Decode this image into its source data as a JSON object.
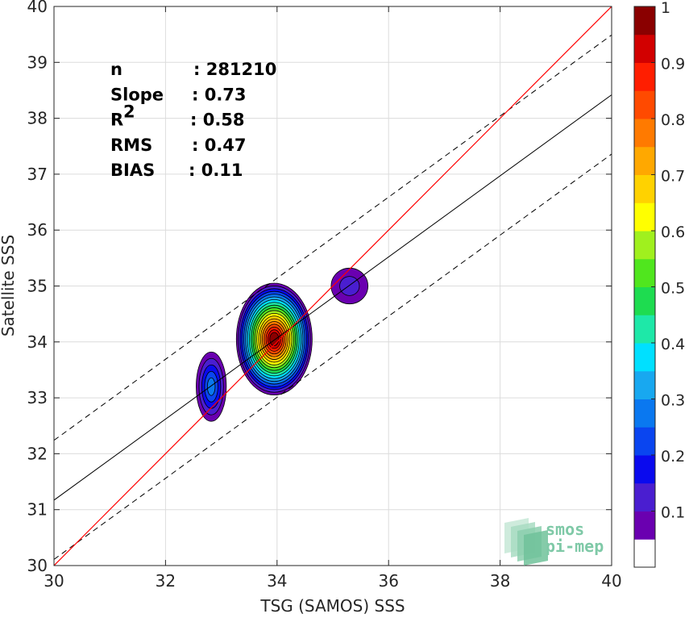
{
  "chart_data": {
    "type": "scatter",
    "subtype": "density-contour",
    "xlabel": "TSG (SAMOS) SSS",
    "ylabel": "Satellite SSS",
    "xlim": [
      30,
      40
    ],
    "ylim": [
      30,
      40
    ],
    "x_ticks": [
      "30",
      "32",
      "34",
      "36",
      "38",
      "40"
    ],
    "y_ticks": [
      "30",
      "31",
      "32",
      "33",
      "34",
      "35",
      "36",
      "37",
      "38",
      "39",
      "40"
    ],
    "grid": true,
    "stats": [
      {
        "label": "n",
        "value": ": 281210"
      },
      {
        "label": "Slope",
        "value": ": 0.73"
      },
      {
        "label": "R",
        "sup": "2",
        "value": ": 0.58"
      },
      {
        "label": "RMS",
        "value": ": 0.47"
      },
      {
        "label": "BIAS",
        "value": ": 0.11"
      }
    ],
    "lines": {
      "one_to_one": {
        "x": [
          30,
          40
        ],
        "y": [
          30,
          40
        ],
        "color": "#ff0000"
      },
      "fit": {
        "x": [
          30,
          40
        ],
        "y": [
          31.17,
          38.42
        ],
        "color": "#000000"
      },
      "fit_upper": {
        "x": [
          30,
          40
        ],
        "y": [
          32.24,
          39.49
        ],
        "color": "#000000",
        "style": "dashed"
      },
      "fit_lower": {
        "x": [
          30,
          40
        ],
        "y": [
          30.11,
          37.36
        ],
        "color": "#000000",
        "style": "dashed"
      }
    },
    "density_clusters": [
      {
        "cx": 33.95,
        "cy": 34.05,
        "rx": 0.68,
        "ry": 1.0,
        "peak": 1.0
      },
      {
        "cx": 32.82,
        "cy": 33.2,
        "rx": 0.27,
        "ry": 0.62,
        "peak": 0.25
      },
      {
        "cx": 35.3,
        "cy": 35.0,
        "rx": 0.33,
        "ry": 0.32,
        "peak": 0.13
      }
    ],
    "colorbar": {
      "min": 0,
      "max": 1,
      "tick_labels": [
        "0.1",
        "0.2",
        "0.3",
        "0.4",
        "0.5",
        "0.6",
        "0.7",
        "0.8",
        "0.9",
        "1"
      ],
      "tick_values": [
        0.1,
        0.2,
        0.3,
        0.4,
        0.5,
        0.6,
        0.7,
        0.8,
        0.9,
        1.0
      ],
      "colors": [
        "#ffffff",
        "#6a00b0",
        "#4a1ed0",
        "#0a0aee",
        "#0a45f0",
        "#0a78f0",
        "#18a8f0",
        "#00e0ff",
        "#1ee8a8",
        "#1edc50",
        "#50e61e",
        "#a0f01e",
        "#ffff00",
        "#ffd200",
        "#ffa800",
        "#ff7a00",
        "#ff4a00",
        "#ff1e00",
        "#d20000",
        "#8a0000"
      ]
    },
    "logo": {
      "line1": "smos",
      "line2": "pi-mep"
    }
  }
}
